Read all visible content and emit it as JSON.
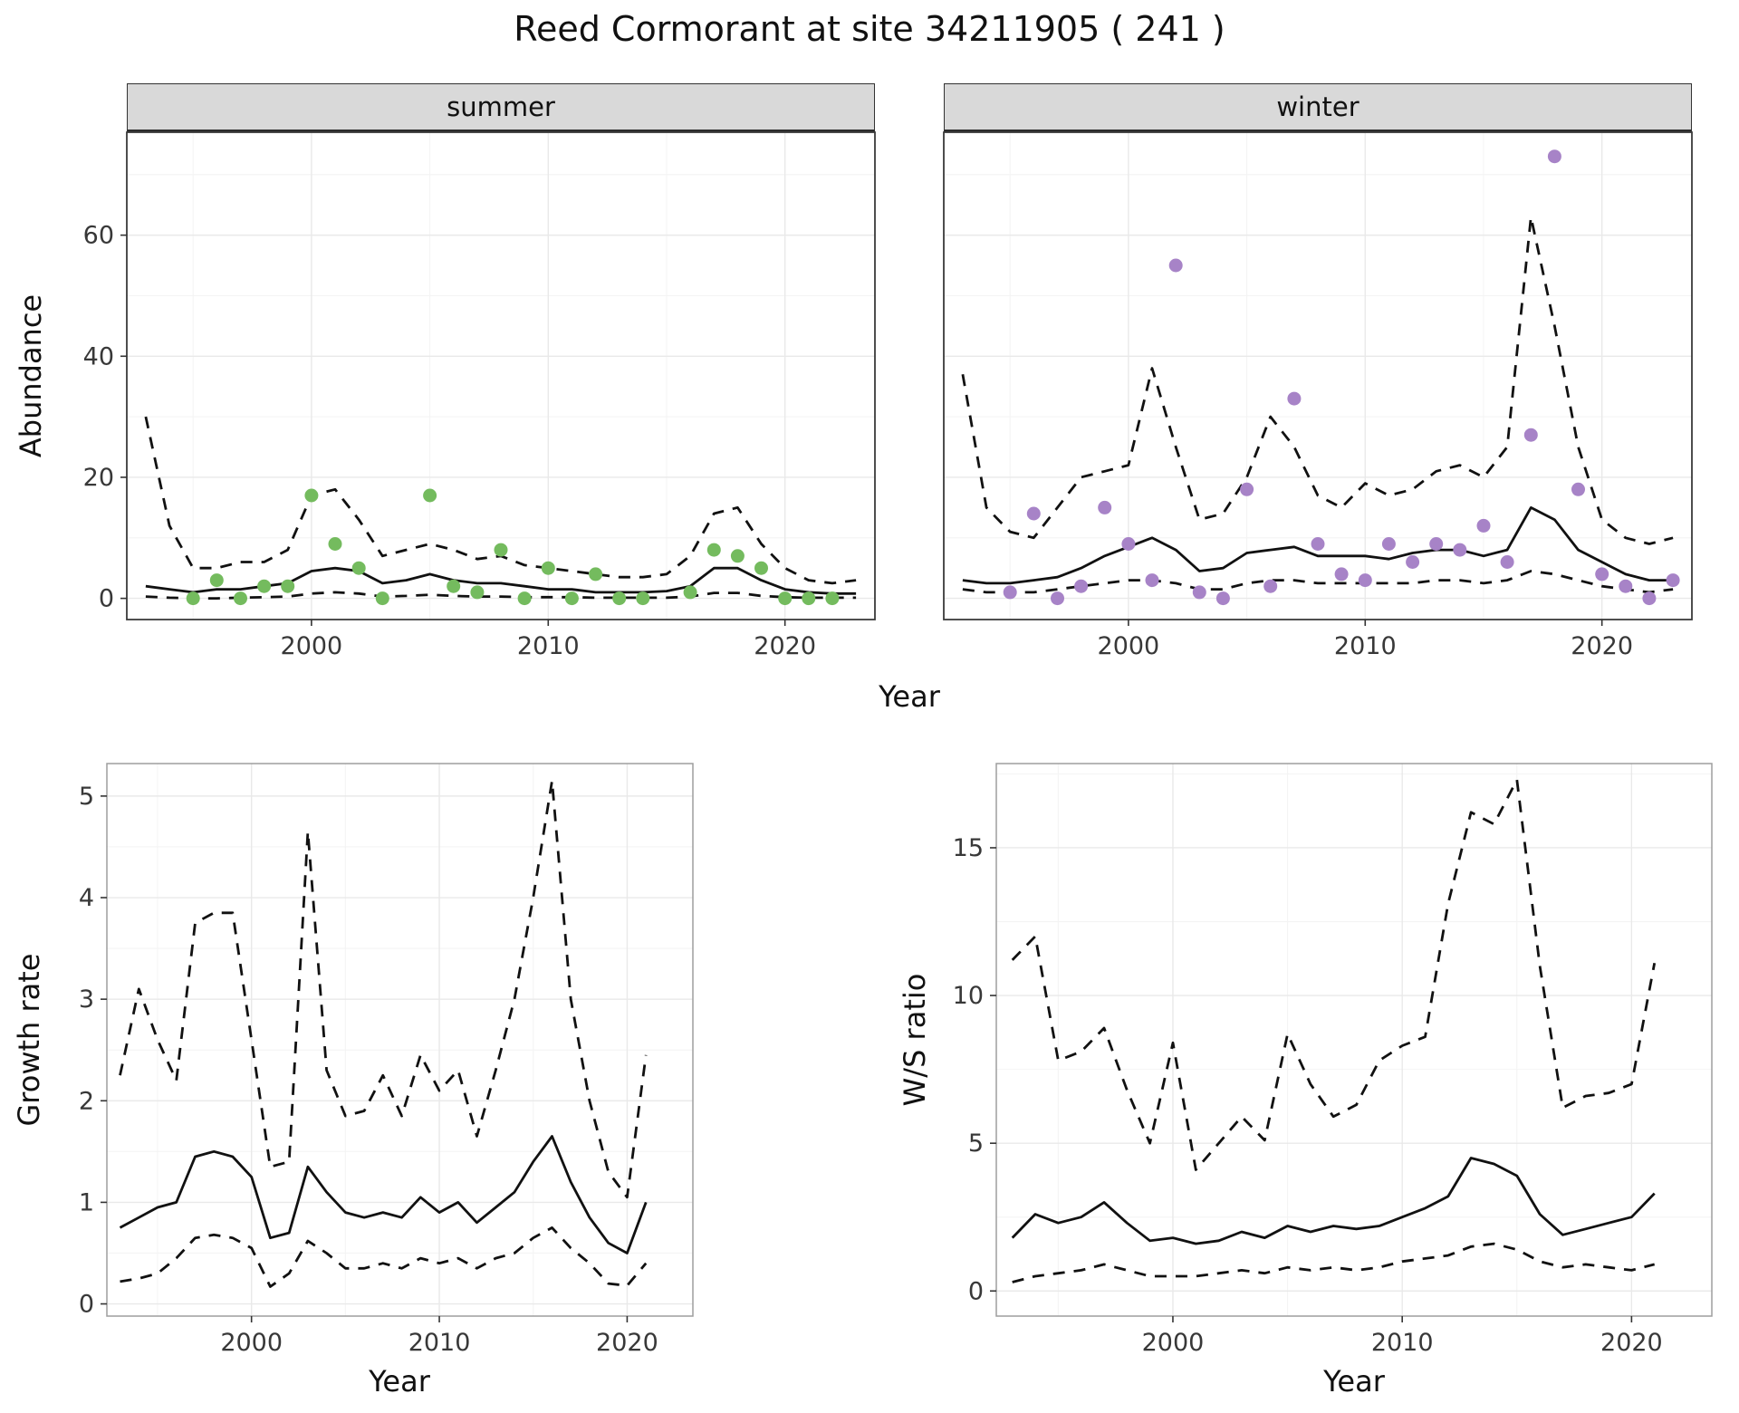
{
  "chart_data": {
    "type": "line",
    "title": "Reed Cormorant at site 34211905 ( 241 )",
    "xlabel": "Year",
    "abundance": {
      "ylabel": "Abundance",
      "xlabel": "Year",
      "xlim": [
        1992.2,
        2023.8
      ],
      "ylim": [
        -3.5,
        77
      ],
      "xticks": [
        2000,
        2010,
        2020
      ],
      "yticks": [
        0,
        20,
        40,
        60
      ],
      "legend": "none",
      "grid": "major+minor",
      "facets": [
        {
          "label": "summer",
          "point_color": "#74bb5e",
          "years": [
            1993,
            1994,
            1995,
            1996,
            1997,
            1998,
            1999,
            2000,
            2001,
            2002,
            2003,
            2004,
            2005,
            2006,
            2007,
            2008,
            2009,
            2010,
            2011,
            2012,
            2013,
            2014,
            2015,
            2016,
            2017,
            2018,
            2019,
            2020,
            2021,
            2022,
            2023
          ],
          "fit": [
            2,
            1.5,
            1,
            1.5,
            1.5,
            2,
            2.5,
            4.5,
            5,
            4.5,
            2.5,
            3,
            4,
            3,
            2.5,
            2.5,
            2,
            1.5,
            1.5,
            1,
            1,
            1,
            1.2,
            2,
            5,
            5,
            3,
            1.5,
            1,
            0.8,
            0.8
          ],
          "upper": [
            30,
            12,
            5,
            5,
            6,
            6,
            8,
            17,
            18,
            13,
            7,
            8,
            9,
            8,
            6.5,
            7,
            5.5,
            5,
            4.5,
            4,
            3.5,
            3.5,
            4,
            7,
            14,
            15,
            9,
            5,
            3,
            2.5,
            3
          ],
          "lower": [
            0.3,
            0.1,
            0,
            0,
            0.1,
            0.2,
            0.3,
            0.8,
            1,
            0.8,
            0.3,
            0.4,
            0.6,
            0.4,
            0.3,
            0.3,
            0.2,
            0.2,
            0.2,
            0.1,
            0.1,
            0.1,
            0.1,
            0.3,
            0.9,
            0.9,
            0.4,
            0.2,
            0.1,
            0.1,
            0.1
          ],
          "points": {
            "x": [
              1995,
              1996,
              1997,
              1998,
              1999,
              2000,
              2001,
              2002,
              2003,
              2005,
              2006,
              2007,
              2008,
              2009,
              2010,
              2011,
              2012,
              2013,
              2014,
              2016,
              2017,
              2018,
              2019,
              2020,
              2021,
              2022
            ],
            "y": [
              0,
              3,
              0,
              2,
              2,
              17,
              9,
              5,
              0,
              17,
              2,
              1,
              8,
              0,
              5,
              0,
              4,
              0,
              0,
              1,
              8,
              7,
              5,
              0,
              0,
              0
            ]
          }
        },
        {
          "label": "winter",
          "point_color": "#a783c7",
          "years": [
            1993,
            1994,
            1995,
            1996,
            1997,
            1998,
            1999,
            2000,
            2001,
            2002,
            2003,
            2004,
            2005,
            2006,
            2007,
            2008,
            2009,
            2010,
            2011,
            2012,
            2013,
            2014,
            2015,
            2016,
            2017,
            2018,
            2019,
            2020,
            2021,
            2022,
            2023
          ],
          "fit": [
            3,
            2.5,
            2.5,
            3,
            3.5,
            5,
            7,
            8.5,
            10,
            8,
            4.5,
            5,
            7.5,
            8,
            8.5,
            7,
            7,
            7,
            6.5,
            7.5,
            8,
            8,
            7,
            8,
            15,
            13,
            8,
            6,
            4,
            3,
            3
          ],
          "upper": [
            37,
            15,
            11,
            10,
            15,
            20,
            21,
            22,
            38,
            25,
            13,
            14,
            20,
            30,
            25,
            17,
            15,
            19,
            17,
            18,
            21,
            22,
            20,
            25,
            63,
            45,
            25,
            13,
            10,
            9,
            10
          ],
          "lower": [
            1.5,
            1,
            1,
            1,
            1.5,
            2,
            2.5,
            3,
            3,
            2.5,
            1.5,
            1.5,
            2.5,
            3,
            3,
            2.5,
            2.5,
            2.5,
            2.5,
            2.5,
            3,
            3,
            2.5,
            3,
            4.5,
            4,
            3,
            2,
            1.5,
            1,
            1.5
          ],
          "points": {
            "x": [
              1995,
              1996,
              1997,
              1998,
              1999,
              2000,
              2001,
              2002,
              2003,
              2004,
              2005,
              2006,
              2007,
              2008,
              2009,
              2010,
              2011,
              2012,
              2013,
              2014,
              2015,
              2016,
              2017,
              2018,
              2019,
              2020,
              2021,
              2022,
              2023
            ],
            "y": [
              1,
              14,
              0,
              2,
              15,
              9,
              3,
              55,
              1,
              0,
              18,
              2,
              33,
              9,
              4,
              3,
              9,
              6,
              9,
              8,
              12,
              6,
              27,
              73,
              18,
              4,
              2,
              0,
              3
            ]
          }
        }
      ]
    },
    "growth": {
      "ylabel": "Growth rate",
      "xlabel": "Year",
      "xlim": [
        1992.3,
        2023.5
      ],
      "ylim": [
        -0.12,
        5.32
      ],
      "xticks": [
        2000,
        2010,
        2020
      ],
      "yticks": [
        0,
        1,
        2,
        3,
        4,
        5
      ],
      "years": [
        1993,
        1994,
        1995,
        1996,
        1997,
        1998,
        1999,
        2000,
        2001,
        2002,
        2003,
        2004,
        2005,
        2006,
        2007,
        2008,
        2009,
        2010,
        2011,
        2012,
        2013,
        2014,
        2015,
        2016,
        2017,
        2018,
        2019,
        2020,
        2021
      ],
      "fit": [
        0.75,
        0.85,
        0.95,
        1.0,
        1.45,
        1.5,
        1.45,
        1.25,
        0.65,
        0.7,
        1.35,
        1.1,
        0.9,
        0.85,
        0.9,
        0.85,
        1.05,
        0.9,
        1.0,
        0.8,
        0.95,
        1.1,
        1.4,
        1.65,
        1.2,
        0.85,
        0.6,
        0.5,
        1.0
      ],
      "upper": [
        2.25,
        3.1,
        2.6,
        2.2,
        3.75,
        3.85,
        3.85,
        2.6,
        1.35,
        1.4,
        4.65,
        2.3,
        1.85,
        1.9,
        2.25,
        1.85,
        2.45,
        2.1,
        2.3,
        1.65,
        2.3,
        3.0,
        4.0,
        5.15,
        3.0,
        2.0,
        1.3,
        1.05,
        2.45
      ],
      "lower": [
        0.22,
        0.25,
        0.3,
        0.45,
        0.65,
        0.68,
        0.65,
        0.55,
        0.17,
        0.3,
        0.62,
        0.5,
        0.35,
        0.35,
        0.4,
        0.35,
        0.45,
        0.4,
        0.45,
        0.35,
        0.45,
        0.5,
        0.65,
        0.75,
        0.55,
        0.4,
        0.2,
        0.18,
        0.4
      ]
    },
    "ratio": {
      "ylabel": "W/S ratio",
      "xlabel": "Year",
      "xlim": [
        1992.3,
        2023.5
      ],
      "ylim": [
        -0.85,
        17.85
      ],
      "xticks": [
        2000,
        2010,
        2020
      ],
      "yticks": [
        0,
        5,
        10,
        15
      ],
      "years": [
        1993,
        1994,
        1995,
        1996,
        1997,
        1998,
        1999,
        2000,
        2001,
        2002,
        2003,
        2004,
        2005,
        2006,
        2007,
        2008,
        2009,
        2010,
        2011,
        2012,
        2013,
        2014,
        2015,
        2016,
        2017,
        2018,
        2019,
        2020,
        2021
      ],
      "fit": [
        1.8,
        2.6,
        2.3,
        2.5,
        3.0,
        2.3,
        1.7,
        1.8,
        1.6,
        1.7,
        2.0,
        1.8,
        2.2,
        2.0,
        2.2,
        2.1,
        2.2,
        2.5,
        2.8,
        3.2,
        4.5,
        4.3,
        3.9,
        2.6,
        1.9,
        2.1,
        2.3,
        2.5,
        3.3
      ],
      "upper": [
        11.2,
        12.0,
        7.8,
        8.1,
        8.9,
        6.8,
        5.0,
        8.4,
        4.1,
        5.0,
        5.9,
        5.1,
        8.7,
        7.0,
        5.9,
        6.3,
        7.8,
        8.3,
        8.6,
        13.1,
        16.2,
        15.8,
        17.3,
        11.0,
        6.2,
        6.6,
        6.7,
        7.0,
        11.1
      ],
      "lower": [
        0.3,
        0.5,
        0.6,
        0.7,
        0.9,
        0.7,
        0.5,
        0.5,
        0.5,
        0.6,
        0.7,
        0.6,
        0.8,
        0.7,
        0.8,
        0.7,
        0.8,
        1.0,
        1.1,
        1.2,
        1.5,
        1.6,
        1.4,
        1.0,
        0.8,
        0.9,
        0.8,
        0.7,
        0.9
      ]
    },
    "line_styles": {
      "fit": "solid black",
      "interval": "dashed black"
    }
  }
}
